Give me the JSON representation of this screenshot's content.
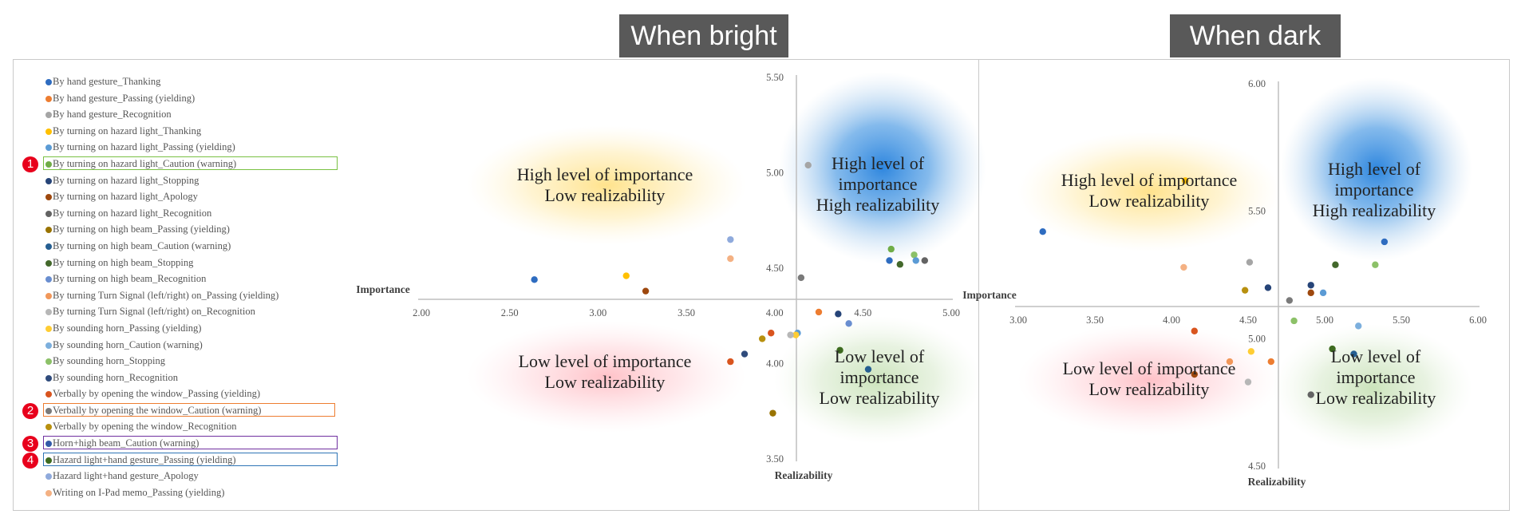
{
  "titles": {
    "bright": "When bright",
    "dark": "When dark"
  },
  "badges": [
    "1",
    "2",
    "3",
    "4"
  ],
  "legend": [
    {
      "label": "By hand gesture_Thanking",
      "color": "#2e6cc0"
    },
    {
      "label": "By hand gesture_Passing (yielding)",
      "color": "#ed7d31"
    },
    {
      "label": "By hand gesture_Recognition",
      "color": "#a5a5a5"
    },
    {
      "label": "By turning on hazard light_Thanking",
      "color": "#ffc000"
    },
    {
      "label": "By turning on hazard light_Passing (yielding)",
      "color": "#5b9bd5"
    },
    {
      "label": "By turning on hazard light_Caution (warning)",
      "color": "#70ad47",
      "badge": "1",
      "box": "#7ac143"
    },
    {
      "label": "By turning on hazard light_Stopping",
      "color": "#264478"
    },
    {
      "label": "By turning on hazard light_Apology",
      "color": "#9e480e"
    },
    {
      "label": "By turning on hazard light_Recognition",
      "color": "#636363"
    },
    {
      "label": "By turning on high beam_Passing (yielding)",
      "color": "#997300"
    },
    {
      "label": "By turning on high beam_Caution (warning)",
      "color": "#255e91"
    },
    {
      "label": "By turning on high beam_Stopping",
      "color": "#43682b"
    },
    {
      "label": "By turning on high beam_Recognition",
      "color": "#698ed0"
    },
    {
      "label": "By turning Turn Signal (left/right) on_Passing (yielding)",
      "color": "#f1975a"
    },
    {
      "label": "By turning Turn Signal (left/right) on_Recognition",
      "color": "#b7b7b7"
    },
    {
      "label": "By sounding horn_Passing (yielding)",
      "color": "#ffcd33"
    },
    {
      "label": "By sounding horn_Caution (warning)",
      "color": "#7cafdd"
    },
    {
      "label": "By sounding horn_Stopping",
      "color": "#8cc168"
    },
    {
      "label": "By sounding horn_Recognition",
      "color": "#2f4b7c"
    },
    {
      "label": "Verbally by opening the window_Passing (yielding)",
      "color": "#d9541e"
    },
    {
      "label": "Verbally by opening the window_Caution (warning)",
      "color": "#7a7a7a",
      "badge": "2",
      "box": "#ed7d31"
    },
    {
      "label": "Verbally by opening the window_Recognition",
      "color": "#b8900f"
    },
    {
      "label": "Horn+high beam_Caution (warning)",
      "color": "#335aa8",
      "badge": "3",
      "box": "#7030a0"
    },
    {
      "label": "Hazard light+hand gesture_Passing (yielding)",
      "color": "#3d6b1f",
      "badge": "4",
      "box": "#2e75b6"
    },
    {
      "label": "Hazard light+hand gesture_Apology",
      "color": "#8faadc"
    },
    {
      "label": "Writing on I-Pad memo_Passing (yielding)",
      "color": "#f4b183"
    }
  ],
  "chart_data": [
    {
      "type": "scatter",
      "title": "When bright",
      "xlabel": "Importance",
      "ylabel": "Realizability",
      "xlim": [
        2.0,
        5.0
      ],
      "ylim": [
        3.5,
        5.5
      ],
      "x_ticks": [
        "2.00",
        "2.50",
        "3.00",
        "3.50",
        "4.00",
        "4.50",
        "5.00"
      ],
      "y_ticks": [
        "3.50",
        "4.00",
        "4.50",
        "5.00",
        "5.50"
      ],
      "x_cross": 4.13,
      "y_cross": 4.33,
      "quadrant_labels": {
        "top_left": [
          "High level of importance",
          "Low realizability"
        ],
        "top_right": [
          "High level of",
          "importance",
          "High realizability"
        ],
        "bottom_left": [
          "Low level of importance",
          "Low realizability"
        ],
        "bottom_right": [
          "Low level of",
          "importance",
          "Low realizability"
        ]
      },
      "points": [
        {
          "x": 2.64,
          "y": 4.44,
          "color": "#2e6cc0"
        },
        {
          "x": 3.16,
          "y": 4.46,
          "color": "#ffc000"
        },
        {
          "x": 3.27,
          "y": 4.38,
          "color": "#9e480e"
        },
        {
          "x": 3.75,
          "y": 4.65,
          "color": "#8faadc"
        },
        {
          "x": 3.75,
          "y": 4.55,
          "color": "#f4b183"
        },
        {
          "x": 4.19,
          "y": 5.04,
          "color": "#a5a5a5"
        },
        {
          "x": 4.15,
          "y": 4.45,
          "color": "#7a7a7a"
        },
        {
          "x": 4.25,
          "y": 4.27,
          "color": "#ed7d31"
        },
        {
          "x": 4.36,
          "y": 4.26,
          "color": "#264478"
        },
        {
          "x": 4.42,
          "y": 4.21,
          "color": "#698ed0"
        },
        {
          "x": 4.65,
          "y": 4.54,
          "color": "#2e6cc0"
        },
        {
          "x": 4.66,
          "y": 4.6,
          "color": "#70ad47"
        },
        {
          "x": 4.71,
          "y": 4.52,
          "color": "#43682b"
        },
        {
          "x": 4.79,
          "y": 4.57,
          "color": "#8cc168"
        },
        {
          "x": 4.8,
          "y": 4.54,
          "color": "#5b9bd5"
        },
        {
          "x": 4.85,
          "y": 4.54,
          "color": "#636363"
        },
        {
          "x": 4.13,
          "y": 4.16,
          "color": "#5b9bd5"
        },
        {
          "x": 4.12,
          "y": 4.15,
          "color": "#ffcd33"
        },
        {
          "x": 4.09,
          "y": 4.15,
          "color": "#b7b7b7"
        },
        {
          "x": 3.98,
          "y": 4.16,
          "color": "#d9541e"
        },
        {
          "x": 3.93,
          "y": 4.13,
          "color": "#b8900f"
        },
        {
          "x": 3.83,
          "y": 4.05,
          "color": "#2f4b7c"
        },
        {
          "x": 3.75,
          "y": 4.01,
          "color": "#d9541e"
        },
        {
          "x": 4.37,
          "y": 4.07,
          "color": "#3d6b1f"
        },
        {
          "x": 4.53,
          "y": 3.97,
          "color": "#255e91"
        },
        {
          "x": 3.99,
          "y": 3.74,
          "color": "#997300"
        }
      ]
    },
    {
      "type": "scatter",
      "title": "When dark",
      "xlabel": "Importance",
      "ylabel": "Realizability",
      "xlim": [
        3.0,
        6.0
      ],
      "ylim": [
        4.5,
        6.0
      ],
      "x_ticks": [
        "3.00",
        "3.50",
        "4.00",
        "4.50",
        "5.00",
        "5.50",
        "6.00"
      ],
      "y_ticks": [
        "4.50",
        "5.00",
        "5.50",
        "6.00"
      ],
      "x_cross": 4.5,
      "y_cross": 5.25,
      "quadrant_labels": {
        "top_left": [
          "High level of importance",
          "Low realizability"
        ],
        "top_right": [
          "High level of",
          "importance",
          "High realizability"
        ],
        "bottom_left": [
          "Low level of importance",
          "Low realizability"
        ],
        "bottom_right": [
          "Low level of",
          "importance",
          "Low realizability"
        ]
      },
      "points": [
        {
          "x": 3.16,
          "y": 5.42,
          "color": "#2e6cc0"
        },
        {
          "x": 4.09,
          "y": 5.62,
          "color": "#ffc000"
        },
        {
          "x": 4.08,
          "y": 5.28,
          "color": "#f4b183"
        },
        {
          "x": 4.51,
          "y": 5.3,
          "color": "#a5a5a5"
        },
        {
          "x": 4.48,
          "y": 5.19,
          "color": "#b8900f"
        },
        {
          "x": 5.07,
          "y": 5.29,
          "color": "#43682b"
        },
        {
          "x": 5.33,
          "y": 5.29,
          "color": "#8cc168"
        },
        {
          "x": 5.39,
          "y": 5.38,
          "color": "#2e6cc0"
        },
        {
          "x": 4.91,
          "y": 5.21,
          "color": "#264478"
        },
        {
          "x": 4.63,
          "y": 5.2,
          "color": "#264478"
        },
        {
          "x": 4.91,
          "y": 5.18,
          "color": "#9e480e"
        },
        {
          "x": 4.99,
          "y": 5.18,
          "color": "#5b9bd5"
        },
        {
          "x": 4.77,
          "y": 5.15,
          "color": "#7a7a7a"
        },
        {
          "x": 4.15,
          "y": 5.03,
          "color": "#d9541e"
        },
        {
          "x": 4.8,
          "y": 5.07,
          "color": "#8cc168"
        },
        {
          "x": 5.22,
          "y": 5.05,
          "color": "#7cafdd"
        },
        {
          "x": 5.05,
          "y": 4.96,
          "color": "#3d6b1f"
        },
        {
          "x": 5.19,
          "y": 4.94,
          "color": "#255e91"
        },
        {
          "x": 4.52,
          "y": 4.95,
          "color": "#ffcd33"
        },
        {
          "x": 4.38,
          "y": 4.91,
          "color": "#f1975a"
        },
        {
          "x": 4.65,
          "y": 4.91,
          "color": "#ed7d31"
        },
        {
          "x": 4.15,
          "y": 4.86,
          "color": "#9e480e"
        },
        {
          "x": 4.5,
          "y": 4.83,
          "color": "#b7b7b7"
        },
        {
          "x": 4.91,
          "y": 4.78,
          "color": "#636363"
        }
      ]
    }
  ]
}
